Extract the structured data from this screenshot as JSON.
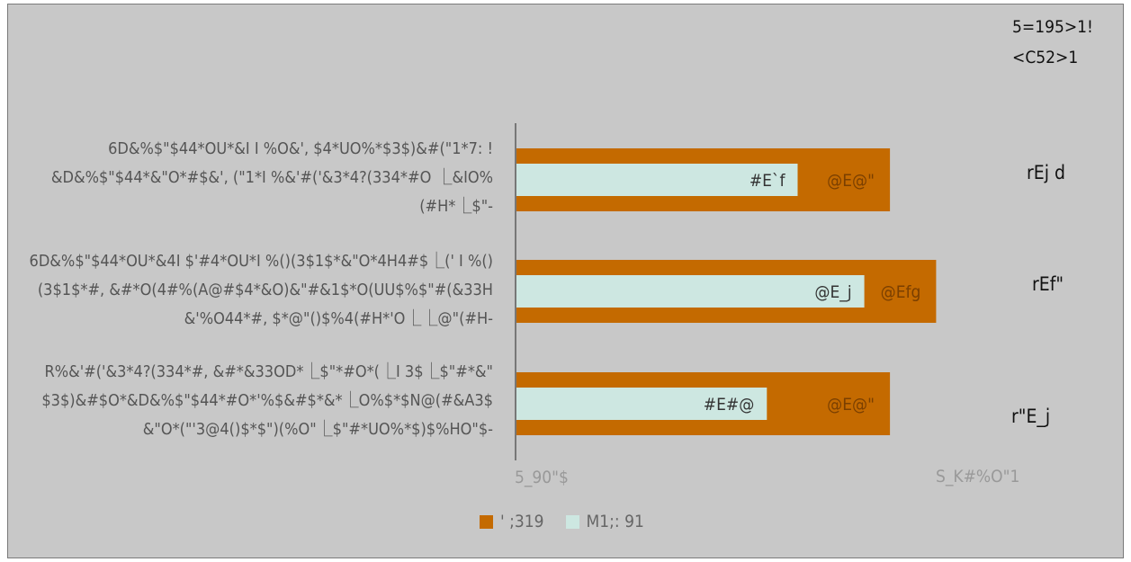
{
  "header": {
    "line1": "5=195>1!",
    "line2": "<C52>1"
  },
  "chart_data": {
    "type": "bar",
    "orientation": "horizontal",
    "categories": [
      "6D&%$\"$44*OU*&I I %O&', $4*UO%*$3$)&#(\"1*7: ! &D&%$\"$44*&\"O*#$&', (\"1*I %&'#('&3*4?(334*#O ⎿&IO%(#H*⎿$\"-",
      "6D&%$\"$44*OU*&4I $'#4*OU*I %()(3$1$*&\"O*4H4#$⎿(' I %()(3$1$*#, &#*O(4#%(A@#$4*&O)&\"#&1$*O(UU$%$\"#(&33H &'%O44*#, $*@\"()$%4(#H*'O⎿⎿@\"(#H-",
      "R%&'#('&3*4?(334*#, &#*&33OD*⎿$\"*#O*(⎿I 3$⎿$\"#*&\" $3$)&#$O*&D&%$\"$44*#O*'%$&#$*&*⎿O%$*$N@(#&A3$ &\"O*(\"'3@4()$*$\")(%O\"⎿$\"#*UO%*$)$%HO\"$-"
    ],
    "series": [
      {
        "name": "' ;319",
        "color": "#c46a00",
        "values": [
          0.73,
          0.82,
          0.73
        ],
        "labels": [
          "@E@\"",
          "@Efg",
          "@E@\""
        ]
      },
      {
        "name": "M1;: 91",
        "color": "#cde7e1",
        "values": [
          0.55,
          0.68,
          0.49
        ],
        "labels": [
          "#E`f",
          "@E_j",
          "#E#@"
        ]
      }
    ],
    "right_labels": [
      "rEj d",
      "rEf\"",
      "r\"E_j"
    ],
    "xlim": [
      0,
      1
    ],
    "x_tick_label": "5_90\"$",
    "secondary_label": "S_K#%O\"1",
    "legend_position": "bottom"
  }
}
